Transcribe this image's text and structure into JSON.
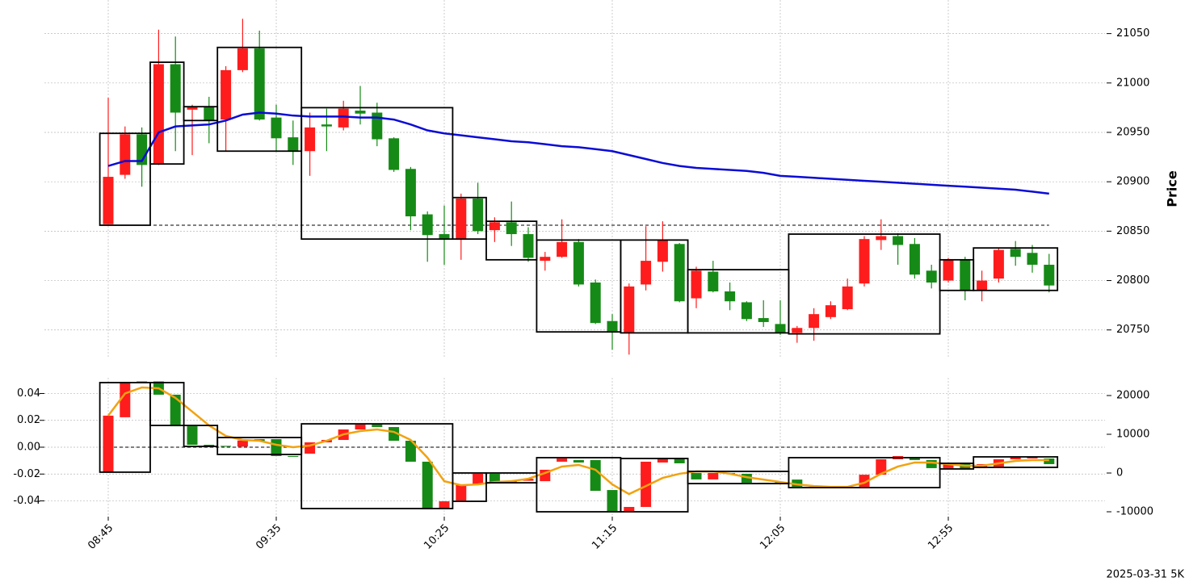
{
  "footer": "2025-03-31 5K",
  "chart_data": [
    {
      "type": "candlestick",
      "ylabel": "Price",
      "yaxis_side": "right",
      "grid": true,
      "ylim": [
        20722,
        21084
      ],
      "yticks": [
        20750,
        20800,
        20850,
        20900,
        20950,
        21000,
        21050
      ],
      "up_color": "#ff1c1c",
      "down_color": "#168a16",
      "box_color": "#000000",
      "open": [
        20857,
        20907,
        20948,
        20918,
        21019,
        20973,
        20976,
        20963,
        21013,
        21035,
        20965,
        20945,
        20931,
        20958,
        20955,
        20972,
        20970,
        20944,
        20913,
        20867,
        20847,
        20842,
        20883,
        20851,
        20859,
        20847,
        20820,
        20824,
        20839,
        20798,
        20759,
        20747,
        20796,
        20819,
        20837,
        20782,
        20809,
        20789,
        20778,
        20762,
        20756,
        20747,
        20752,
        20763,
        20771,
        20797,
        20841,
        20845,
        20837,
        20810,
        20800,
        20821,
        20790,
        20802,
        20832,
        20828,
        20816
      ],
      "high": [
        20985,
        20956,
        20955,
        21054,
        21047,
        20978,
        20986,
        21017,
        21065,
        21053,
        20978,
        20962,
        20970,
        20974,
        20982,
        20997,
        20980,
        20945,
        20915,
        20870,
        20876,
        20888,
        20899,
        20864,
        20880,
        20854,
        20829,
        20862,
        20842,
        20801,
        20766,
        20797,
        20855,
        20860,
        20838,
        20814,
        20820,
        20798,
        20779,
        20780,
        20780,
        20754,
        20772,
        20779,
        20802,
        20845,
        20862,
        20848,
        20843,
        20816,
        20823,
        20824,
        20810,
        20833,
        20840,
        20836,
        20827
      ],
      "low": [
        20857,
        20903,
        20895,
        20917,
        20931,
        20927,
        20939,
        20931,
        21011,
        20962,
        20931,
        20917,
        20906,
        20931,
        20952,
        20958,
        20936,
        20910,
        20851,
        20819,
        20816,
        20821,
        20847,
        20839,
        20835,
        20819,
        20810,
        20823,
        20794,
        20756,
        20730,
        20725,
        20790,
        20809,
        20778,
        20772,
        20788,
        20770,
        20759,
        20753,
        20745,
        20737,
        20739,
        20761,
        20770,
        20794,
        20831,
        20816,
        20802,
        20792,
        20798,
        20780,
        20779,
        20798,
        20815,
        20808,
        20788
      ],
      "close": [
        20905,
        20948,
        20917,
        21019,
        20970,
        20976,
        20962,
        21013,
        21035,
        20963,
        20944,
        20931,
        20955,
        20956,
        20974,
        20969,
        20943,
        20912,
        20865,
        20846,
        20842,
        20883,
        20850,
        20859,
        20847,
        20823,
        20824,
        20839,
        20796,
        20757,
        20748,
        20794,
        20820,
        20841,
        20779,
        20810,
        20789,
        20779,
        20761,
        20758,
        20747,
        20752,
        20766,
        20775,
        20794,
        20842,
        20845,
        20836,
        20806,
        20798,
        20821,
        20790,
        20800,
        20831,
        20824,
        20816,
        20795
      ],
      "line": {
        "color": "#0b0bd6",
        "values": [
          20916,
          20921,
          20921,
          20950,
          20956,
          20957,
          20958,
          20962,
          20968,
          20970,
          20969,
          20967,
          20966,
          20966,
          20966,
          20965,
          20965,
          20963,
          20958,
          20952,
          20949,
          20947,
          20945,
          20943,
          20941,
          20940,
          20938,
          20936,
          20935,
          20933,
          20931,
          20927,
          20923,
          20919,
          20916,
          20914,
          20913,
          20912,
          20911,
          20909,
          20906,
          20905,
          20904,
          20903,
          20902,
          20901,
          20900,
          20899,
          20898,
          20897,
          20896,
          20895,
          20894,
          20893,
          20892,
          20890,
          20888
        ]
      },
      "hline": 20856,
      "boxes": [
        {
          "start": 0,
          "end": 2,
          "top": 20949,
          "bottom": 20856
        },
        {
          "start": 3,
          "end": 4,
          "top": 21021,
          "bottom": 20918
        },
        {
          "start": 5,
          "end": 6,
          "top": 20976,
          "bottom": 20962
        },
        {
          "start": 7,
          "end": 11,
          "top": 21036,
          "bottom": 20931
        },
        {
          "start": 12,
          "end": 20,
          "top": 20975,
          "bottom": 20842
        },
        {
          "start": 21,
          "end": 22,
          "top": 20884,
          "bottom": 20842
        },
        {
          "start": 23,
          "end": 25,
          "top": 20860,
          "bottom": 20821
        },
        {
          "start": 26,
          "end": 30,
          "top": 20841,
          "bottom": 20748
        },
        {
          "start": 31,
          "end": 34,
          "top": 20841,
          "bottom": 20747
        },
        {
          "start": 35,
          "end": 40,
          "top": 20811,
          "bottom": 20747
        },
        {
          "start": 41,
          "end": 49,
          "top": 20847,
          "bottom": 20746
        },
        {
          "start": 50,
          "end": 51,
          "top": 20821,
          "bottom": 20790
        },
        {
          "start": 52,
          "end": 56,
          "top": 20833,
          "bottom": 20790
        }
      ]
    },
    {
      "type": "candlestick",
      "grid": true,
      "categories": [
        "08:45",
        null,
        null,
        null,
        null,
        null,
        null,
        null,
        null,
        null,
        "09:35",
        null,
        null,
        null,
        null,
        null,
        null,
        null,
        null,
        null,
        "10:25",
        null,
        null,
        null,
        null,
        null,
        null,
        null,
        null,
        null,
        "11:15",
        null,
        null,
        null,
        null,
        null,
        null,
        null,
        null,
        null,
        "12:05",
        null,
        null,
        null,
        null,
        null,
        null,
        null,
        null,
        null,
        "12:55",
        null,
        null,
        null,
        null,
        null,
        null
      ],
      "ylim": [
        -0.0517,
        0.0517
      ],
      "yticks": [
        -0.04,
        -0.02,
        {
          "value": 0,
          "label": "0.00"
        },
        0.02,
        0.04
      ],
      "y2lim": [
        -11250,
        24583
      ],
      "y2ticks": [
        -10000,
        0,
        10000,
        20000
      ],
      "up_color": "#ff1c1c",
      "down_color": "#168a16",
      "box_color": "#000000",
      "open": [
        -0.0186,
        0.0223,
        0.0487,
        0.049,
        0.0391,
        0.0156,
        0.0018,
        0.001,
        0.0004,
        0.006,
        0.006,
        -0.0066,
        -0.0048,
        0.0036,
        0.0054,
        0.0132,
        0.0168,
        0.015,
        0.0048,
        -0.0108,
        -0.0457,
        -0.0397,
        -0.0277,
        -0.0198,
        -0.0265,
        -0.025,
        -0.0253,
        -0.0108,
        -0.0096,
        -0.0096,
        -0.0319,
        -0.0481,
        -0.0445,
        -0.0114,
        -0.0084,
        -0.0192,
        -0.024,
        -0.0192,
        -0.0198,
        -0.0265,
        -0.0259,
        -0.0241,
        -0.0295,
        -0.0299,
        -0.0301,
        -0.0295,
        -0.0205,
        -0.009,
        -0.0078,
        -0.0096,
        -0.0156,
        -0.012,
        -0.0156,
        -0.0144,
        -0.009,
        -0.0084,
        -0.0084
      ],
      "close": [
        0.0235,
        0.0487,
        0.049,
        0.0391,
        0.0156,
        0.0018,
        0.0006,
        0.0004,
        0.005,
        0.0045,
        -0.0066,
        -0.0072,
        0.0036,
        0.0054,
        0.0132,
        0.0168,
        0.015,
        0.0048,
        -0.0108,
        -0.0463,
        -0.0403,
        -0.0277,
        -0.0198,
        -0.0265,
        -0.025,
        -0.0235,
        -0.0168,
        -0.0084,
        -0.0114,
        -0.0325,
        -0.0481,
        -0.0445,
        -0.0108,
        -0.0084,
        -0.012,
        -0.024,
        -0.0192,
        -0.0198,
        -0.0265,
        -0.0271,
        -0.0271,
        -0.0295,
        -0.0301,
        -0.0301,
        -0.0295,
        -0.0205,
        -0.009,
        -0.0066,
        -0.0096,
        -0.0156,
        -0.0126,
        -0.0156,
        -0.0126,
        -0.009,
        -0.0072,
        -0.0072,
        -0.0126
      ],
      "line": {
        "color": "#f2a20f",
        "values": [
          0.0235,
          0.04,
          0.0445,
          0.0439,
          0.0367,
          0.0265,
          0.0162,
          0.0084,
          0.0054,
          0.0048,
          0.0018,
          0.0,
          0.0012,
          0.0048,
          0.0096,
          0.012,
          0.0132,
          0.0114,
          0.0054,
          -0.0078,
          -0.0253,
          -0.0283,
          -0.0277,
          -0.0259,
          -0.0253,
          -0.0235,
          -0.0192,
          -0.0144,
          -0.0132,
          -0.0168,
          -0.0277,
          -0.0349,
          -0.0289,
          -0.0229,
          -0.0198,
          -0.018,
          -0.018,
          -0.0198,
          -0.0223,
          -0.0241,
          -0.0259,
          -0.0277,
          -0.0289,
          -0.0295,
          -0.0295,
          -0.0265,
          -0.0198,
          -0.0144,
          -0.0114,
          -0.0114,
          -0.0126,
          -0.0138,
          -0.0138,
          -0.012,
          -0.0102,
          -0.0096,
          -0.0096
        ]
      },
      "hline": 0,
      "boxes": [
        {
          "start": 0,
          "end": 2,
          "top": 0.0481,
          "bottom": -0.0186
        },
        {
          "start": 3,
          "end": 4,
          "top": 0.0481,
          "bottom": 0.0162
        },
        {
          "start": 5,
          "end": 6,
          "top": 0.0162,
          "bottom": 0.0006
        },
        {
          "start": 7,
          "end": 11,
          "top": 0.0072,
          "bottom": -0.0054
        },
        {
          "start": 12,
          "end": 20,
          "top": 0.0174,
          "bottom": -0.0457
        },
        {
          "start": 21,
          "end": 22,
          "top": -0.0192,
          "bottom": -0.0403
        },
        {
          "start": 23,
          "end": 25,
          "top": -0.0192,
          "bottom": -0.0265
        },
        {
          "start": 26,
          "end": 30,
          "top": -0.0078,
          "bottom": -0.0481
        },
        {
          "start": 31,
          "end": 34,
          "top": -0.0084,
          "bottom": -0.0481
        },
        {
          "start": 35,
          "end": 40,
          "top": -0.018,
          "bottom": -0.0271
        },
        {
          "start": 41,
          "end": 49,
          "top": -0.0078,
          "bottom": -0.0301
        },
        {
          "start": 50,
          "end": 51,
          "top": -0.012,
          "bottom": -0.0162
        },
        {
          "start": 52,
          "end": 56,
          "top": -0.0072,
          "bottom": -0.015
        }
      ]
    }
  ]
}
